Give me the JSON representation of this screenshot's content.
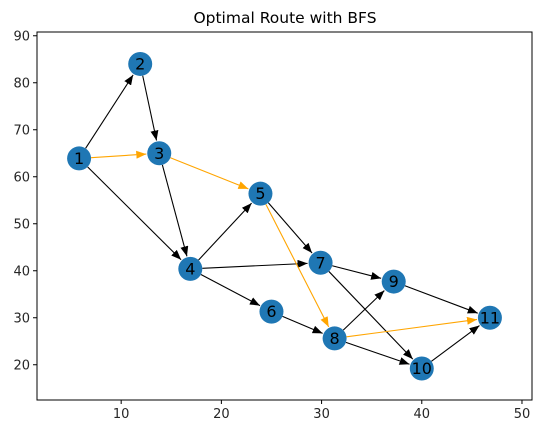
{
  "chart_data": {
    "type": "network",
    "title": "Optimal Route with BFS",
    "xlabel": "",
    "ylabel": "",
    "xlim": [
      1.6,
      51.0
    ],
    "ylim": [
      12.5,
      90.8
    ],
    "xticks": [
      10,
      20,
      30,
      40,
      50
    ],
    "yticks": [
      20,
      30,
      40,
      50,
      60,
      70,
      80,
      90
    ],
    "grid": false,
    "node_color": "#1f77b4",
    "edge_color": "#000000",
    "route_color": "#ffa500",
    "nodes": [
      {
        "id": "1",
        "x": 5.8,
        "y": 63.9
      },
      {
        "id": "2",
        "x": 11.9,
        "y": 84.0
      },
      {
        "id": "3",
        "x": 13.8,
        "y": 65.0
      },
      {
        "id": "4",
        "x": 16.9,
        "y": 40.4
      },
      {
        "id": "5",
        "x": 23.9,
        "y": 56.4
      },
      {
        "id": "6",
        "x": 25.0,
        "y": 31.3
      },
      {
        "id": "7",
        "x": 29.9,
        "y": 41.7
      },
      {
        "id": "8",
        "x": 31.3,
        "y": 25.6
      },
      {
        "id": "9",
        "x": 37.2,
        "y": 37.7
      },
      {
        "id": "10",
        "x": 40.0,
        "y": 19.2
      },
      {
        "id": "11",
        "x": 46.8,
        "y": 30.0
      }
    ],
    "edges": [
      {
        "from": "1",
        "to": "2",
        "route": false
      },
      {
        "from": "1",
        "to": "3",
        "route": true
      },
      {
        "from": "1",
        "to": "4",
        "route": false
      },
      {
        "from": "2",
        "to": "3",
        "route": false
      },
      {
        "from": "3",
        "to": "4",
        "route": false
      },
      {
        "from": "3",
        "to": "5",
        "route": true
      },
      {
        "from": "4",
        "to": "5",
        "route": false
      },
      {
        "from": "4",
        "to": "6",
        "route": false
      },
      {
        "from": "4",
        "to": "7",
        "route": false
      },
      {
        "from": "5",
        "to": "7",
        "route": false
      },
      {
        "from": "5",
        "to": "8",
        "route": true
      },
      {
        "from": "6",
        "to": "8",
        "route": false
      },
      {
        "from": "7",
        "to": "9",
        "route": false
      },
      {
        "from": "7",
        "to": "10",
        "route": false
      },
      {
        "from": "8",
        "to": "9",
        "route": false
      },
      {
        "from": "8",
        "to": "10",
        "route": false
      },
      {
        "from": "8",
        "to": "11",
        "route": true
      },
      {
        "from": "9",
        "to": "11",
        "route": false
      },
      {
        "from": "10",
        "to": "11",
        "route": false
      }
    ]
  }
}
